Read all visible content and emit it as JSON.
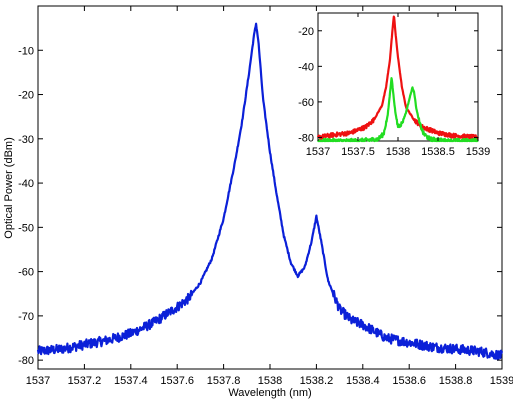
{
  "chart_data": [
    {
      "type": "line",
      "title": "",
      "xlabel": "Wavelength (nm)",
      "ylabel": "Optical Power (dBm)",
      "xlim": [
        1537,
        1539
      ],
      "ylim": [
        -82,
        0
      ],
      "x_ticks": [
        "1537",
        "1537.2",
        "1537.4",
        "1537.6",
        "1537.8",
        "1538",
        "1538.2",
        "1538.4",
        "1538.6",
        "1538.8",
        "1539"
      ],
      "y_ticks": [
        "-80",
        "-70",
        "-60",
        "-50",
        "-40",
        "-30",
        "-20",
        "-10"
      ],
      "color": "#0b20d8",
      "series": [
        {
          "x": [
            1537.0,
            1537.1,
            1537.2,
            1537.3,
            1537.4,
            1537.5,
            1537.6,
            1537.65,
            1537.7,
            1537.75,
            1537.8,
            1537.85,
            1537.88,
            1537.91,
            1537.93,
            1537.94,
            1537.95,
            1537.97,
            1538.0,
            1538.03,
            1538.06,
            1538.09,
            1538.12,
            1538.15,
            1538.18,
            1538.2,
            1538.22,
            1538.25,
            1538.3,
            1538.35,
            1538.4,
            1538.5,
            1538.6,
            1538.7,
            1538.8,
            1538.9,
            1539.0
          ],
          "y": [
            -78,
            -77.5,
            -76.5,
            -75.5,
            -74,
            -71.5,
            -68,
            -66,
            -62.5,
            -57,
            -48,
            -35,
            -26,
            -15,
            -7,
            -4,
            -8,
            -21,
            -33,
            -43,
            -52,
            -58,
            -61,
            -59,
            -53,
            -47.5,
            -53,
            -62,
            -68.5,
            -71,
            -72,
            -75,
            -76,
            -77,
            -77.5,
            -78,
            -79
          ]
        }
      ]
    },
    {
      "type": "line",
      "title": "",
      "xlabel": "",
      "ylabel": "",
      "xlim": [
        1537,
        1539
      ],
      "ylim": [
        -82,
        -10
      ],
      "x_ticks": [
        "1537",
        "1537.5",
        "1538",
        "1538.5",
        "1539"
      ],
      "y_ticks": [
        "-80",
        "-60",
        "-40",
        "-20"
      ],
      "series": [
        {
          "color": "#ee1111",
          "x": [
            1537.0,
            1537.2,
            1537.4,
            1537.6,
            1537.7,
            1537.8,
            1537.85,
            1537.9,
            1537.93,
            1537.95,
            1537.97,
            1538.0,
            1538.05,
            1538.1,
            1538.2,
            1538.3,
            1538.5,
            1538.7,
            1539.0
          ],
          "y": [
            -80,
            -78.5,
            -77.5,
            -74,
            -70,
            -62,
            -52,
            -36,
            -20,
            -11,
            -22,
            -35,
            -52,
            -63,
            -70,
            -74,
            -77.5,
            -79,
            -80
          ]
        },
        {
          "color": "#22dd22",
          "x": [
            1537.0,
            1537.5,
            1537.75,
            1537.82,
            1537.87,
            1537.9,
            1537.92,
            1537.94,
            1537.97,
            1538.0,
            1538.05,
            1538.1,
            1538.15,
            1538.18,
            1538.2,
            1538.23,
            1538.27,
            1538.32,
            1538.4,
            1538.6,
            1539.0
          ],
          "y": [
            -82,
            -82,
            -81,
            -78,
            -68,
            -55,
            -46,
            -55,
            -67,
            -74,
            -72,
            -66,
            -57,
            -52,
            -54,
            -64,
            -72,
            -78,
            -81,
            -82,
            -82
          ]
        }
      ]
    }
  ]
}
